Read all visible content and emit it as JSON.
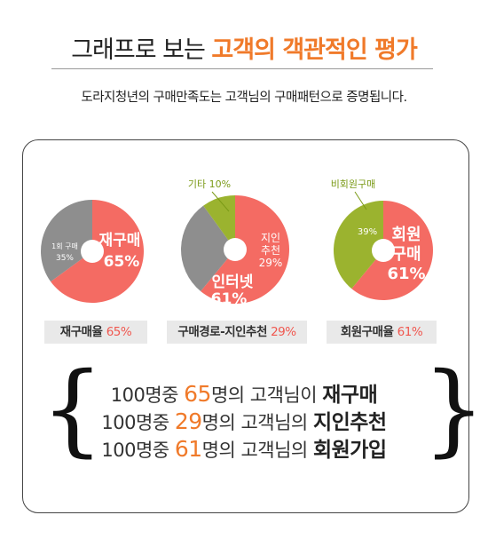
{
  "header": {
    "title_plain": "그래프로 보는",
    "title_highlight": "고객의 객관적인 평가",
    "subtitle": "도라지청년의 구매만족도는 고객님의 구매패턴으로 증명됩니다."
  },
  "colors": {
    "red": "#f46b63",
    "gray": "#8e8e8e",
    "green": "#9bb32f",
    "orange": "#f07a2a"
  },
  "chart_data": [
    {
      "type": "pie",
      "slices": [
        {
          "label": "재구매",
          "value": 65,
          "pct_label": "65%",
          "color": "#f46b63"
        },
        {
          "label": "1회 구매",
          "value": 35,
          "pct_label": "35%",
          "color": "#8e8e8e"
        }
      ],
      "caption_label": "재구매율",
      "caption_value": "65%"
    },
    {
      "type": "pie",
      "slices": [
        {
          "label": "인터넷",
          "value": 61,
          "pct_label": "61%",
          "color": "#f46b63"
        },
        {
          "label": "지인 추천",
          "value": 29,
          "pct_label": "29%",
          "color": "#8e8e8e"
        },
        {
          "label": "기타",
          "value": 10,
          "pct_label": "10%",
          "color": "#9bb32f"
        }
      ],
      "caption_label": "구매경로-지인추천",
      "caption_value": "29%"
    },
    {
      "type": "pie",
      "slices": [
        {
          "label": "회원 구매",
          "value": 61,
          "pct_label": "61%",
          "color": "#f46b63"
        },
        {
          "label": "비회원구매",
          "value": 39,
          "pct_label": "39%",
          "color": "#9bb32f"
        }
      ],
      "caption_label": "회원구매율",
      "caption_value": "61%"
    }
  ],
  "summary": [
    {
      "prefix": "100명중",
      "num": "65",
      "mid": "명의 고객님이",
      "emph": "재구매"
    },
    {
      "prefix": "100명중",
      "num": "29",
      "mid": "명의 고객님의",
      "emph": "지인추천"
    },
    {
      "prefix": "100명중",
      "num": "61",
      "mid": "명의 고객님의",
      "emph": "회원가입"
    }
  ]
}
